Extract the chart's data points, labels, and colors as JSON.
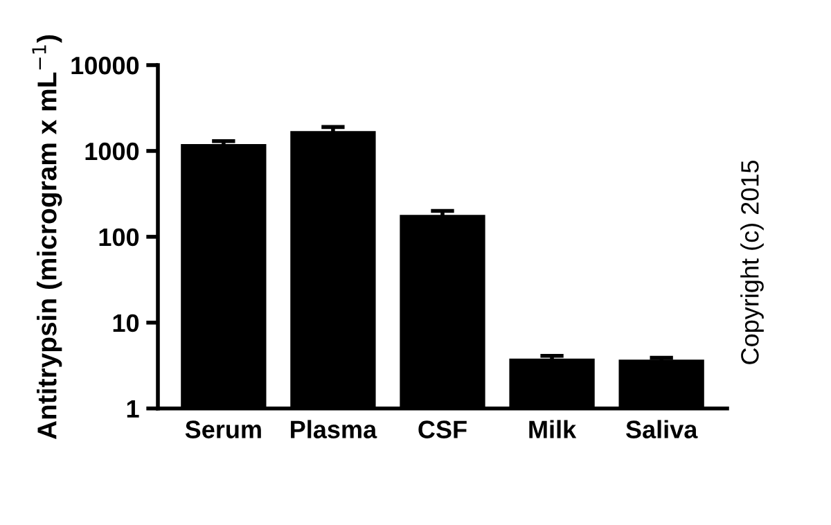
{
  "chart_data": {
    "type": "bar",
    "ylabel": "Antitrypsin (microgram x mL$^{−1}$)",
    "categories": [
      "Serum",
      "Plasma",
      "CSF",
      "Milk",
      "Saliva"
    ],
    "values": [
      1200,
      1700,
      180,
      3.8,
      3.7
    ],
    "errors": [
      100,
      200,
      20,
      0.3,
      0.2
    ],
    "color": "#000000",
    "log": true,
    "ylim": [
      1,
      10000
    ],
    "yticks": [
      1,
      10,
      100,
      1000,
      10000
    ],
    "grid": false,
    "annotations": [
      "Copyright (c) 2015"
    ]
  }
}
